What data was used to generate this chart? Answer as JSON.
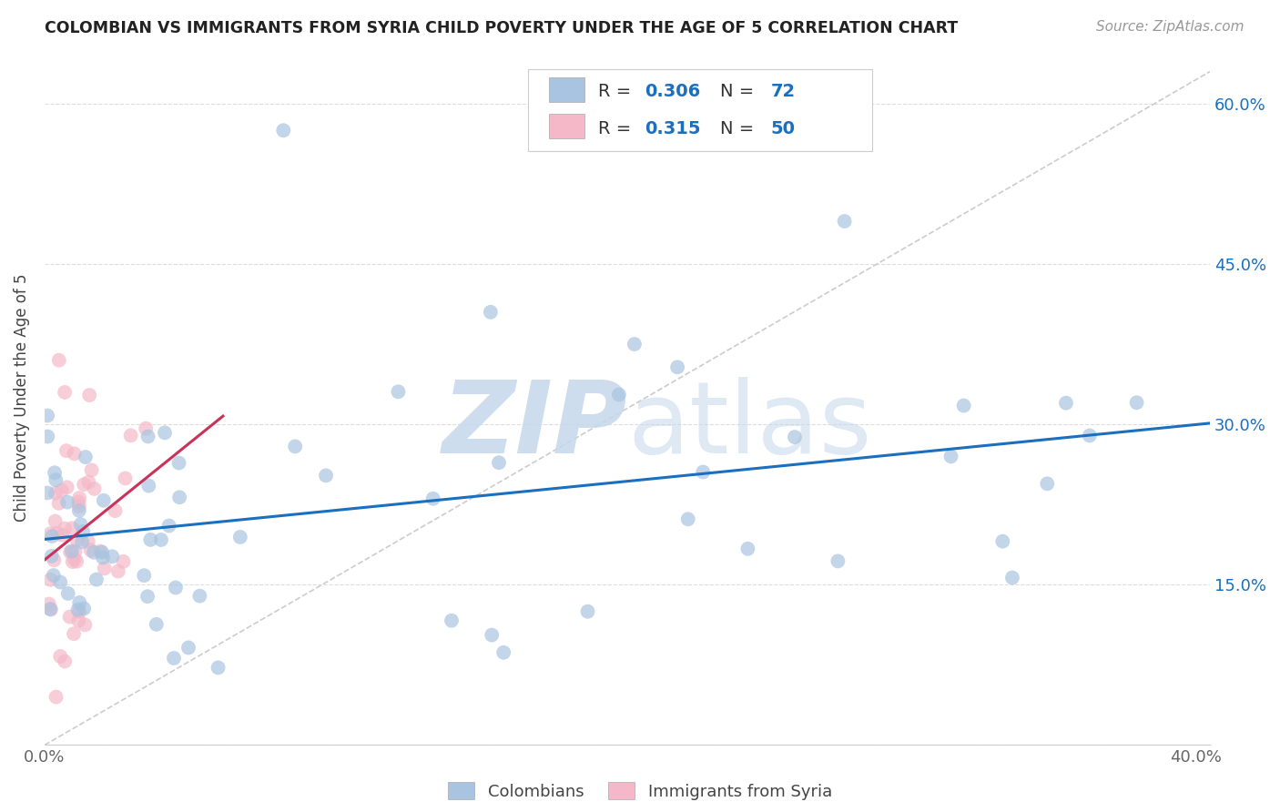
{
  "title": "COLOMBIAN VS IMMIGRANTS FROM SYRIA CHILD POVERTY UNDER THE AGE OF 5 CORRELATION CHART",
  "source": "Source: ZipAtlas.com",
  "ylabel": "Child Poverty Under the Age of 5",
  "xlim": [
    0.0,
    0.405
  ],
  "ylim": [
    0.0,
    0.65
  ],
  "xtick_positions": [
    0.0,
    0.05,
    0.1,
    0.15,
    0.2,
    0.25,
    0.3,
    0.35,
    0.4
  ],
  "ytick_positions": [
    0.0,
    0.15,
    0.3,
    0.45,
    0.6
  ],
  "right_ytick_labels": [
    "15.0%",
    "30.0%",
    "45.0%",
    "60.0%"
  ],
  "right_ytick_positions": [
    0.15,
    0.3,
    0.45,
    0.6
  ],
  "colombian_color": "#a8c4e0",
  "syria_color": "#f4b8c8",
  "line_colombian_color": "#1a6fbe",
  "line_syria_color": "#c9335a",
  "legend_text_color": "#1a6fbe",
  "legend_label_color": "#333333",
  "R_colombian": "0.306",
  "N_colombian": "72",
  "R_syria": "0.315",
  "N_syria": "50",
  "watermark_zip_color": "#c5d8ec",
  "watermark_atlas_color": "#c5d8ec",
  "ref_line_color": "#cccccc",
  "grid_color": "#dddddd",
  "spine_color": "#cccccc",
  "background": "#ffffff",
  "title_fontsize": 12.5,
  "source_fontsize": 11,
  "tick_label_fontsize": 13,
  "ylabel_fontsize": 12,
  "legend_fontsize": 14
}
